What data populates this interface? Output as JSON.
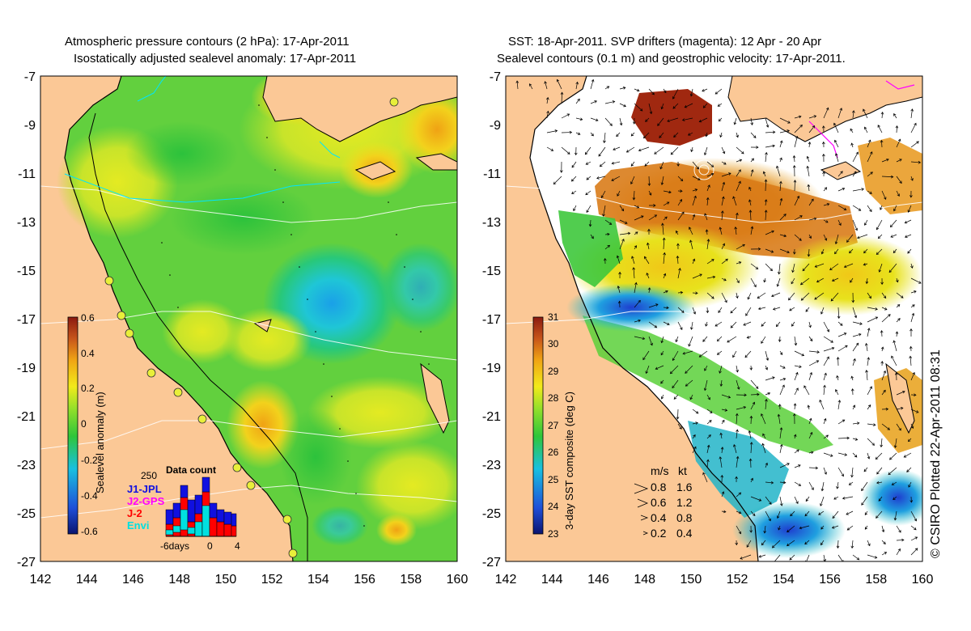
{
  "left_panel": {
    "title_line1": "Atmospheric pressure contours (2 hPa): 17-Apr-2011",
    "title_line2": "Isostatically adjusted sealevel anomaly: 17-Apr-2011",
    "colorbar": {
      "label": "Sealevel anomaly (m)",
      "ticks": [
        "0.6",
        "0.4",
        "0.2",
        "0",
        "-0.2",
        "-0.4",
        "-0.6"
      ],
      "min": -0.6,
      "max": 0.6,
      "colors": [
        "#0a1470",
        "#1f4fd8",
        "#19c0e0",
        "#2ec63a",
        "#96e02a",
        "#f2ea1a",
        "#f0a514",
        "#c8561a",
        "#8b1a10"
      ]
    },
    "inset": {
      "title": "Data count",
      "ymax_label": "250",
      "legend": [
        {
          "label": "J1-JPL",
          "color": "#1010e0"
        },
        {
          "label": "J2-GPS",
          "color": "#ff00ff"
        },
        {
          "label": "J-2",
          "color": "#ff0000"
        },
        {
          "label": "Envi",
          "color": "#00e0e0"
        }
      ],
      "x_labels": [
        "-6days",
        "0",
        "4"
      ]
    }
  },
  "right_panel": {
    "title_line1": "SST: 18-Apr-2011. SVP drifters (magenta): 12 Apr - 20 Apr",
    "title_line2": "Sealevel contours (0.1 m) and geostrophic velocity: 17-Apr-2011.",
    "colorbar": {
      "label": "3-day SST composite (deg C)",
      "ticks": [
        "31",
        "30",
        "29",
        "28",
        "27",
        "26",
        "25",
        "24",
        "23"
      ],
      "min": 23,
      "max": 31,
      "colors": [
        "#0a1470",
        "#1f4fd8",
        "#19c0e0",
        "#2ec63a",
        "#96e02a",
        "#f2ea1a",
        "#f0a514",
        "#c8561a",
        "#8b1a10"
      ]
    },
    "velocity_legend": {
      "header_ms": "m/s",
      "header_kt": "kt",
      "rows": [
        {
          "ms": "0.8",
          "kt": "1.6"
        },
        {
          "ms": "0.6",
          "kt": "1.2"
        },
        {
          "ms": "0.4",
          "kt": "0.8"
        },
        {
          "ms": "0.2",
          "kt": "0.4"
        }
      ]
    }
  },
  "axes": {
    "lon_labels": [
      "142",
      "144",
      "146",
      "148",
      "150",
      "152",
      "154",
      "156",
      "158",
      "160"
    ],
    "lat_labels": [
      "-7",
      "-9",
      "-11",
      "-13",
      "-15",
      "-17",
      "-19",
      "-21",
      "-23",
      "-25",
      "-27"
    ],
    "lon_range": [
      142,
      160
    ],
    "lat_range": [
      -27,
      -7
    ]
  },
  "copyright": "© CSIRO Plotted 22-Apr-2011 08:31",
  "colors": {
    "land": "#fbc896",
    "ocean_base": "#62d03e",
    "no_data": "#ffffff"
  }
}
